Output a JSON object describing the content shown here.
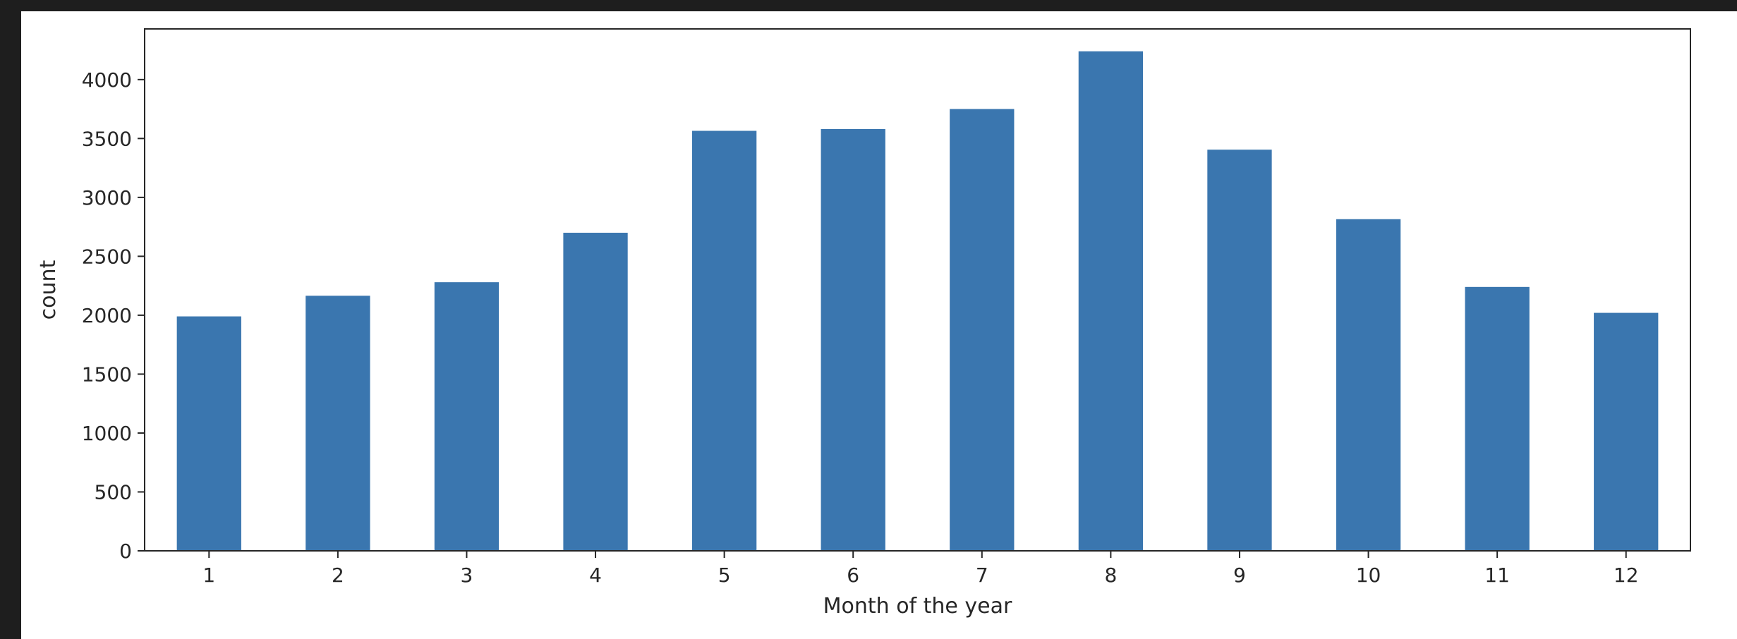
{
  "chart_data": {
    "type": "bar",
    "categories": [
      "1",
      "2",
      "3",
      "4",
      "5",
      "6",
      "7",
      "8",
      "9",
      "10",
      "11",
      "12"
    ],
    "values": [
      1990,
      2165,
      2280,
      2700,
      3565,
      3580,
      3750,
      4240,
      3405,
      2815,
      2240,
      2020
    ],
    "xlabel": "Month of the year",
    "ylabel": "count",
    "ylim": [
      0,
      4430
    ],
    "yticks": [
      0,
      500,
      1000,
      1500,
      2000,
      2500,
      3000,
      3500,
      4000
    ],
    "bar_color": "#3a76af",
    "grid": false,
    "legend": "none"
  },
  "colors": {
    "background": "#1e1e1e",
    "figure": "#ffffff",
    "axis": "#262626"
  }
}
